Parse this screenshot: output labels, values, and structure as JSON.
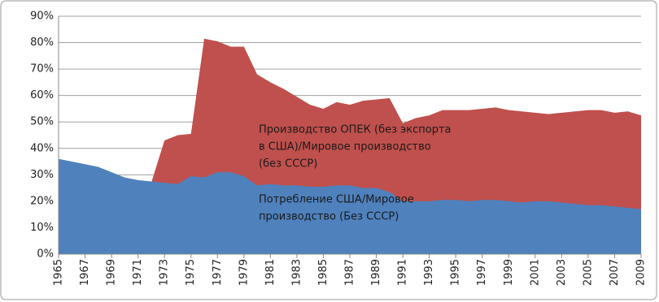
{
  "chart_data": {
    "type": "area",
    "x": [
      1965,
      1966,
      1967,
      1968,
      1969,
      1970,
      1971,
      1972,
      1973,
      1974,
      1975,
      1976,
      1977,
      1978,
      1979,
      1980,
      1981,
      1982,
      1983,
      1984,
      1985,
      1986,
      1987,
      1988,
      1989,
      1990,
      1991,
      1992,
      1993,
      1994,
      1995,
      1996,
      1997,
      1998,
      1999,
      2000,
      2001,
      2002,
      2003,
      2004,
      2005,
      2006,
      2007,
      2008,
      2009
    ],
    "series": [
      {
        "color": "#c0504d",
        "values": [
          null,
          null,
          null,
          null,
          null,
          null,
          null,
          27,
          43,
          45,
          45.5,
          81.5,
          80.5,
          78.5,
          78.5,
          68,
          65,
          62.5,
          59.5,
          56.5,
          55,
          57.5,
          56.5,
          58,
          58.5,
          59,
          49.5,
          51.5,
          52.5,
          54.5,
          54.5,
          54.5,
          55,
          55.5,
          54.5,
          54,
          53.5,
          53,
          53.5,
          54,
          54.5,
          54.5,
          53.5,
          54,
          52.5
        ]
      },
      {
        "color": "#4f81bd",
        "values": [
          36,
          35,
          34,
          33,
          31,
          29,
          28,
          27.5,
          27,
          26.5,
          29.5,
          29,
          31,
          31,
          29.5,
          26,
          26.5,
          26,
          26,
          25.5,
          25.5,
          26,
          26,
          25,
          25,
          23.5,
          20,
          20,
          20,
          20.5,
          20.5,
          20,
          20.5,
          20.5,
          20,
          19.5,
          20,
          20,
          19.5,
          19,
          18.5,
          18.5,
          18,
          17.5,
          17
        ]
      }
    ],
    "annotations": [
      {
        "lines": [
          "Производство ОПЕК (без экспорта",
          "в США)/Мировое производство",
          "(без СССР)"
        ]
      },
      {
        "lines": [
          "Потребление США/Мировое",
          "производство (Без СССР)"
        ]
      }
    ],
    "xlim": [
      1965,
      2009
    ],
    "xticks": [
      1965,
      1967,
      1969,
      1971,
      1973,
      1975,
      1977,
      1979,
      1981,
      1983,
      1985,
      1987,
      1989,
      1991,
      1993,
      1995,
      1997,
      1999,
      2001,
      2003,
      2005,
      2007,
      2009
    ],
    "ylim": [
      0,
      90
    ],
    "yticks": [
      {
        "value": 0,
        "label": "0%"
      },
      {
        "value": 10,
        "label": "10%"
      },
      {
        "value": 20,
        "label": "20%"
      },
      {
        "value": 30,
        "label": "30%"
      },
      {
        "value": 40,
        "label": "40%"
      },
      {
        "value": 50,
        "label": "50%"
      },
      {
        "value": 60,
        "label": "60%"
      },
      {
        "value": 70,
        "label": "70%"
      },
      {
        "value": 80,
        "label": "80%"
      },
      {
        "value": 90,
        "label": "90%"
      }
    ],
    "grid": true
  }
}
